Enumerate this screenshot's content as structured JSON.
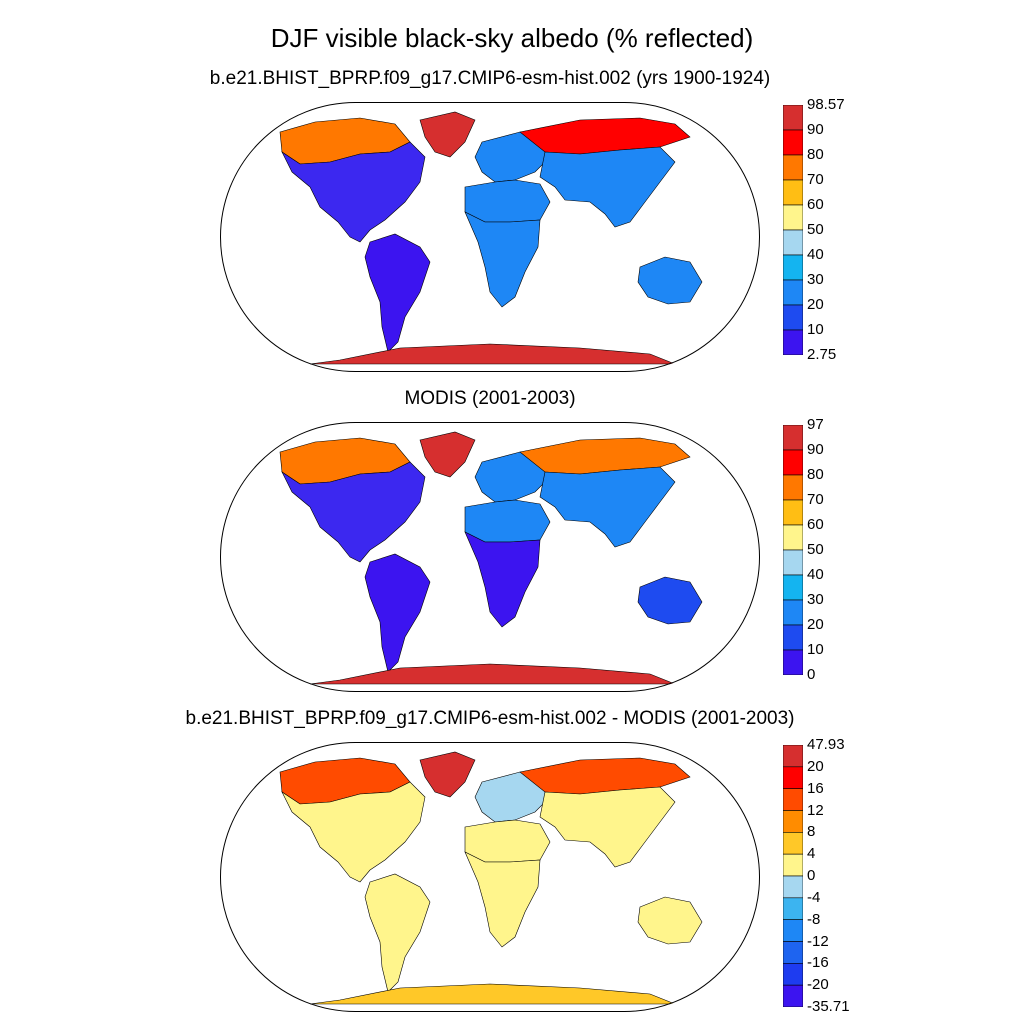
{
  "figure": {
    "title": "DJF visible black-sky albedo (% reflected)"
  },
  "panels": [
    {
      "id": "model",
      "title": "b.e21.BHIST_BPRP.f09_g17.CMIP6-esm-hist.002 (yrs 1900-1924)",
      "colorbar": {
        "labels": [
          "98.57",
          "90",
          "80",
          "70",
          "60",
          "50",
          "40",
          "30",
          "20",
          "10",
          "2.75"
        ],
        "colors": [
          "#d62f2f",
          "#ff0000",
          "#ff7800",
          "#ffbe14",
          "#fff58c",
          "#a6d7f0",
          "#14b4f0",
          "#1e87f5",
          "#1e4bf0",
          "#3c14f0"
        ]
      },
      "regions": {
        "greenland": "#d62f2f",
        "north_america": "#3c28f0",
        "north_america_north": "#ff7800",
        "south_america": "#3c14f0",
        "europe": "#1e87f5",
        "africa": "#1e87f5",
        "sahara": "#1e87f5",
        "siberia": "#ff0000",
        "asia": "#1e87f5",
        "australia": "#1e87f5",
        "antarctica": "#d62f2f"
      }
    },
    {
      "id": "obs",
      "title": "MODIS (2001-2003)",
      "colorbar": {
        "labels": [
          "97",
          "90",
          "80",
          "70",
          "60",
          "50",
          "40",
          "30",
          "20",
          "10",
          "0"
        ],
        "colors": [
          "#d62f2f",
          "#ff0000",
          "#ff7800",
          "#ffbe14",
          "#fff58c",
          "#a6d7f0",
          "#14b4f0",
          "#1e87f5",
          "#1e4bf0",
          "#3c14f0"
        ]
      },
      "regions": {
        "greenland": "#d62f2f",
        "north_america": "#3c28f0",
        "north_america_north": "#ff7800",
        "south_america": "#3c14f0",
        "europe": "#1e87f5",
        "africa": "#3c14f0",
        "sahara": "#1e87f5",
        "siberia": "#ff7800",
        "asia": "#1e87f5",
        "australia": "#1e4bf0",
        "antarctica": "#d62f2f"
      }
    },
    {
      "id": "diff",
      "title": "b.e21.BHIST_BPRP.f09_g17.CMIP6-esm-hist.002 - MODIS (2001-2003)",
      "colorbar": {
        "labels": [
          "47.93",
          "20",
          "16",
          "12",
          "8",
          "4",
          "0",
          "-4",
          "-8",
          "-12",
          "-16",
          "-20",
          "-35.71"
        ],
        "colors": [
          "#d62f2f",
          "#ff0000",
          "#ff4b00",
          "#ff8c00",
          "#ffc828",
          "#fff58c",
          "#a6d7f0",
          "#3cb4f0",
          "#1e87f5",
          "#1e64f0",
          "#1e3cf0",
          "#3c14f0"
        ]
      },
      "regions": {
        "greenland": "#d62f2f",
        "north_america": "#fff58c",
        "north_america_north": "#ff4b00",
        "south_america": "#fff58c",
        "europe": "#a6d7f0",
        "africa": "#fff58c",
        "sahara": "#fff58c",
        "siberia": "#ff4b00",
        "asia": "#fff58c",
        "australia": "#fff58c",
        "antarctica": "#ffc828"
      }
    }
  ]
}
